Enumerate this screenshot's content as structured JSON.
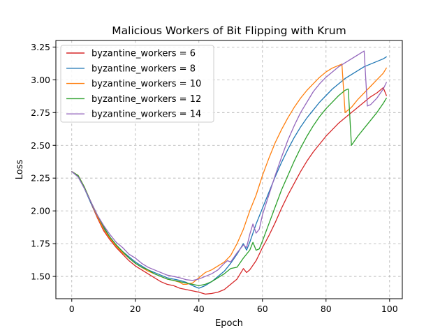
{
  "chart_data": {
    "type": "line",
    "title": "Malicious Workers of Bit Flipping with Krum",
    "xlabel": "Epoch",
    "ylabel": "Loss",
    "xlim": [
      -5,
      104
    ],
    "ylim": [
      1.33,
      3.3
    ],
    "xticks": [
      0,
      20,
      40,
      60,
      80,
      100
    ],
    "yticks": [
      1.5,
      1.75,
      2.0,
      2.25,
      2.5,
      2.75,
      3.0,
      3.25
    ],
    "xtick_labels": [
      "0",
      "20",
      "40",
      "60",
      "80",
      "100"
    ],
    "ytick_labels": [
      "1.50",
      "1.75",
      "2.00",
      "2.25",
      "2.50",
      "2.75",
      "3.00",
      "3.25"
    ],
    "grid": true,
    "legend_position": "upper-left",
    "series": [
      {
        "name": "byzantine_workers = 6",
        "color": "#d62728",
        "points": [
          [
            0,
            2.3
          ],
          [
            2,
            2.27
          ],
          [
            4,
            2.18
          ],
          [
            6,
            2.06
          ],
          [
            8,
            1.95
          ],
          [
            10,
            1.85
          ],
          [
            12,
            1.78
          ],
          [
            14,
            1.72
          ],
          [
            16,
            1.67
          ],
          [
            18,
            1.62
          ],
          [
            20,
            1.58
          ],
          [
            22,
            1.55
          ],
          [
            24,
            1.52
          ],
          [
            26,
            1.49
          ],
          [
            28,
            1.46
          ],
          [
            30,
            1.44
          ],
          [
            32,
            1.43
          ],
          [
            34,
            1.41
          ],
          [
            36,
            1.4
          ],
          [
            38,
            1.39
          ],
          [
            40,
            1.38
          ],
          [
            42,
            1.365
          ],
          [
            44,
            1.37
          ],
          [
            46,
            1.38
          ],
          [
            48,
            1.4
          ],
          [
            50,
            1.44
          ],
          [
            52,
            1.48
          ],
          [
            54,
            1.56
          ],
          [
            55,
            1.53
          ],
          [
            56,
            1.55
          ],
          [
            58,
            1.62
          ],
          [
            60,
            1.72
          ],
          [
            62,
            1.81
          ],
          [
            64,
            1.91
          ],
          [
            66,
            2.02
          ],
          [
            68,
            2.12
          ],
          [
            70,
            2.21
          ],
          [
            72,
            2.3
          ],
          [
            74,
            2.38
          ],
          [
            76,
            2.45
          ],
          [
            78,
            2.51
          ],
          [
            80,
            2.57
          ],
          [
            82,
            2.62
          ],
          [
            84,
            2.67
          ],
          [
            86,
            2.71
          ],
          [
            88,
            2.75
          ],
          [
            90,
            2.79
          ],
          [
            92,
            2.83
          ],
          [
            94,
            2.87
          ],
          [
            96,
            2.9
          ],
          [
            98,
            2.94
          ],
          [
            99,
            2.88
          ]
        ]
      },
      {
        "name": "byzantine_workers = 8",
        "color": "#1f77b4",
        "points": [
          [
            0,
            2.3
          ],
          [
            2,
            2.26
          ],
          [
            4,
            2.17
          ],
          [
            6,
            2.06
          ],
          [
            8,
            1.96
          ],
          [
            10,
            1.87
          ],
          [
            12,
            1.8
          ],
          [
            14,
            1.74
          ],
          [
            16,
            1.69
          ],
          [
            18,
            1.65
          ],
          [
            20,
            1.61
          ],
          [
            22,
            1.58
          ],
          [
            24,
            1.55
          ],
          [
            26,
            1.53
          ],
          [
            28,
            1.51
          ],
          [
            30,
            1.49
          ],
          [
            32,
            1.48
          ],
          [
            34,
            1.47
          ],
          [
            36,
            1.455
          ],
          [
            38,
            1.43
          ],
          [
            40,
            1.41
          ],
          [
            42,
            1.43
          ],
          [
            44,
            1.46
          ],
          [
            46,
            1.5
          ],
          [
            48,
            1.54
          ],
          [
            50,
            1.6
          ],
          [
            52,
            1.67
          ],
          [
            54,
            1.75
          ],
          [
            55,
            1.7
          ],
          [
            56,
            1.76
          ],
          [
            58,
            1.9
          ],
          [
            60,
            2.02
          ],
          [
            62,
            2.14
          ],
          [
            64,
            2.26
          ],
          [
            66,
            2.37
          ],
          [
            68,
            2.47
          ],
          [
            70,
            2.56
          ],
          [
            72,
            2.64
          ],
          [
            74,
            2.71
          ],
          [
            76,
            2.77
          ],
          [
            78,
            2.83
          ],
          [
            80,
            2.88
          ],
          [
            82,
            2.93
          ],
          [
            84,
            2.97
          ],
          [
            86,
            3.01
          ],
          [
            88,
            3.04
          ],
          [
            90,
            3.07
          ],
          [
            92,
            3.1
          ],
          [
            94,
            3.12
          ],
          [
            96,
            3.14
          ],
          [
            98,
            3.16
          ],
          [
            99,
            3.175
          ]
        ]
      },
      {
        "name": "byzantine_workers = 10",
        "color": "#ff7f0e",
        "points": [
          [
            0,
            2.3
          ],
          [
            2,
            2.27
          ],
          [
            4,
            2.18
          ],
          [
            6,
            2.07
          ],
          [
            8,
            1.96
          ],
          [
            10,
            1.86
          ],
          [
            12,
            1.79
          ],
          [
            14,
            1.73
          ],
          [
            16,
            1.68
          ],
          [
            18,
            1.64
          ],
          [
            20,
            1.6
          ],
          [
            22,
            1.57
          ],
          [
            24,
            1.54
          ],
          [
            26,
            1.52
          ],
          [
            28,
            1.5
          ],
          [
            30,
            1.48
          ],
          [
            32,
            1.47
          ],
          [
            34,
            1.455
          ],
          [
            35,
            1.44
          ],
          [
            36,
            1.44
          ],
          [
            38,
            1.45
          ],
          [
            40,
            1.49
          ],
          [
            42,
            1.53
          ],
          [
            44,
            1.55
          ],
          [
            46,
            1.58
          ],
          [
            48,
            1.61
          ],
          [
            50,
            1.66
          ],
          [
            52,
            1.75
          ],
          [
            54,
            1.86
          ],
          [
            56,
            2.0
          ],
          [
            58,
            2.12
          ],
          [
            60,
            2.27
          ],
          [
            62,
            2.4
          ],
          [
            64,
            2.52
          ],
          [
            66,
            2.62
          ],
          [
            68,
            2.71
          ],
          [
            70,
            2.79
          ],
          [
            72,
            2.86
          ],
          [
            74,
            2.92
          ],
          [
            76,
            2.97
          ],
          [
            78,
            3.02
          ],
          [
            80,
            3.06
          ],
          [
            82,
            3.09
          ],
          [
            84,
            3.11
          ],
          [
            85,
            3.12
          ],
          [
            86,
            2.75
          ],
          [
            88,
            2.79
          ],
          [
            90,
            2.85
          ],
          [
            92,
            2.9
          ],
          [
            94,
            2.95
          ],
          [
            96,
            3.0
          ],
          [
            98,
            3.05
          ],
          [
            99,
            3.09
          ]
        ]
      },
      {
        "name": "byzantine_workers = 12",
        "color": "#2ca02c",
        "points": [
          [
            0,
            2.3
          ],
          [
            2,
            2.27
          ],
          [
            4,
            2.18
          ],
          [
            6,
            2.07
          ],
          [
            8,
            1.97
          ],
          [
            10,
            1.88
          ],
          [
            12,
            1.8
          ],
          [
            14,
            1.74
          ],
          [
            16,
            1.69
          ],
          [
            18,
            1.64
          ],
          [
            20,
            1.6
          ],
          [
            22,
            1.57
          ],
          [
            24,
            1.55
          ],
          [
            26,
            1.52
          ],
          [
            28,
            1.5
          ],
          [
            30,
            1.48
          ],
          [
            32,
            1.47
          ],
          [
            34,
            1.46
          ],
          [
            36,
            1.45
          ],
          [
            38,
            1.44
          ],
          [
            40,
            1.43
          ],
          [
            42,
            1.44
          ],
          [
            44,
            1.46
          ],
          [
            46,
            1.49
          ],
          [
            48,
            1.52
          ],
          [
            50,
            1.56
          ],
          [
            52,
            1.57
          ],
          [
            54,
            1.64
          ],
          [
            56,
            1.7
          ],
          [
            57,
            1.76
          ],
          [
            58,
            1.7
          ],
          [
            59,
            1.71
          ],
          [
            60,
            1.77
          ],
          [
            62,
            1.9
          ],
          [
            64,
            2.03
          ],
          [
            66,
            2.16
          ],
          [
            68,
            2.27
          ],
          [
            70,
            2.38
          ],
          [
            72,
            2.48
          ],
          [
            74,
            2.57
          ],
          [
            76,
            2.65
          ],
          [
            78,
            2.72
          ],
          [
            80,
            2.78
          ],
          [
            82,
            2.83
          ],
          [
            84,
            2.88
          ],
          [
            86,
            2.92
          ],
          [
            87,
            2.93
          ],
          [
            88,
            2.5
          ],
          [
            90,
            2.57
          ],
          [
            92,
            2.63
          ],
          [
            94,
            2.69
          ],
          [
            96,
            2.75
          ],
          [
            98,
            2.82
          ],
          [
            99,
            2.86
          ]
        ]
      },
      {
        "name": "byzantine_workers = 14",
        "color": "#9467bd",
        "points": [
          [
            0,
            2.3
          ],
          [
            2,
            2.26
          ],
          [
            4,
            2.17
          ],
          [
            6,
            2.07
          ],
          [
            8,
            1.97
          ],
          [
            10,
            1.89
          ],
          [
            12,
            1.82
          ],
          [
            14,
            1.76
          ],
          [
            16,
            1.72
          ],
          [
            18,
            1.67
          ],
          [
            20,
            1.64
          ],
          [
            22,
            1.6
          ],
          [
            24,
            1.57
          ],
          [
            26,
            1.55
          ],
          [
            28,
            1.53
          ],
          [
            30,
            1.51
          ],
          [
            32,
            1.5
          ],
          [
            34,
            1.49
          ],
          [
            36,
            1.475
          ],
          [
            38,
            1.47
          ],
          [
            40,
            1.48
          ],
          [
            42,
            1.5
          ],
          [
            44,
            1.52
          ],
          [
            46,
            1.55
          ],
          [
            48,
            1.6
          ],
          [
            49,
            1.62
          ],
          [
            50,
            1.61
          ],
          [
            52,
            1.68
          ],
          [
            54,
            1.74
          ],
          [
            55,
            1.72
          ],
          [
            56,
            1.82
          ],
          [
            57,
            1.9
          ],
          [
            58,
            1.83
          ],
          [
            59,
            1.86
          ],
          [
            60,
            1.97
          ],
          [
            62,
            2.12
          ],
          [
            64,
            2.27
          ],
          [
            66,
            2.41
          ],
          [
            68,
            2.54
          ],
          [
            70,
            2.65
          ],
          [
            72,
            2.75
          ],
          [
            74,
            2.83
          ],
          [
            76,
            2.91
          ],
          [
            78,
            2.97
          ],
          [
            80,
            3.02
          ],
          [
            82,
            3.06
          ],
          [
            84,
            3.1
          ],
          [
            86,
            3.13
          ],
          [
            88,
            3.16
          ],
          [
            90,
            3.19
          ],
          [
            92,
            3.22
          ],
          [
            93,
            2.8
          ],
          [
            94,
            2.81
          ],
          [
            96,
            2.86
          ],
          [
            98,
            2.93
          ],
          [
            99,
            2.98
          ]
        ]
      }
    ]
  }
}
